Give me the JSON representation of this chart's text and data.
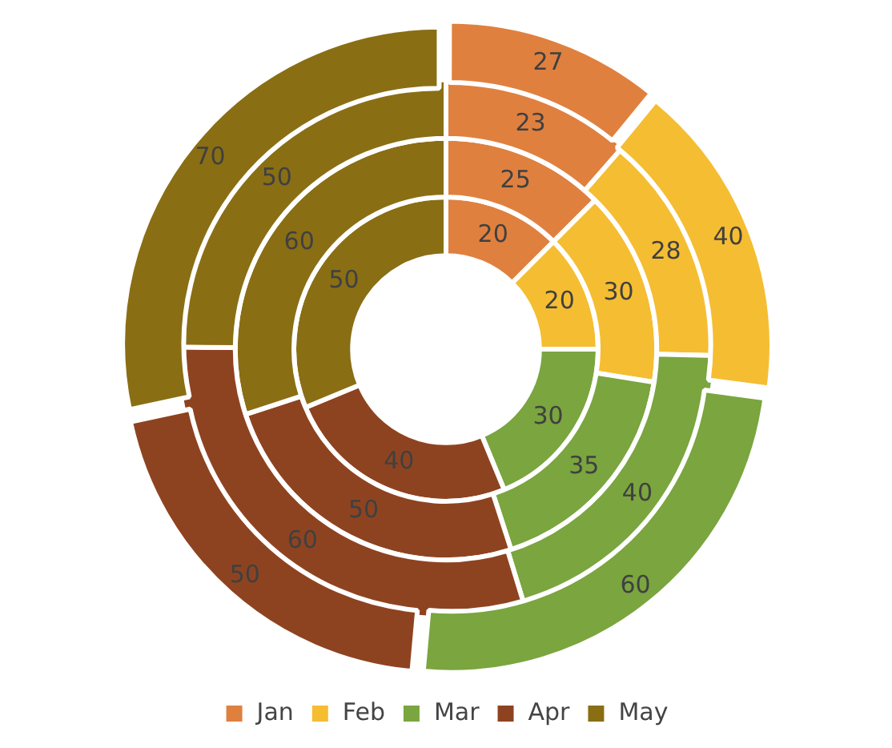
{
  "chart_data": {
    "type": "donut",
    "categories": [
      "Jan",
      "Feb",
      "Mar",
      "Apr",
      "May"
    ],
    "colors": [
      "#e0803f",
      "#f5bd31",
      "#7aa53f",
      "#8e4320",
      "#8a6e14"
    ],
    "series": [
      {
        "values": [
          20,
          20,
          30,
          40,
          50
        ]
      },
      {
        "values": [
          25,
          30,
          35,
          50,
          60
        ]
      },
      {
        "values": [
          23,
          28,
          40,
          60,
          50
        ]
      },
      {
        "values": [
          27,
          40,
          60,
          50,
          70
        ]
      }
    ],
    "data_labels": true,
    "legend": "bottom"
  }
}
